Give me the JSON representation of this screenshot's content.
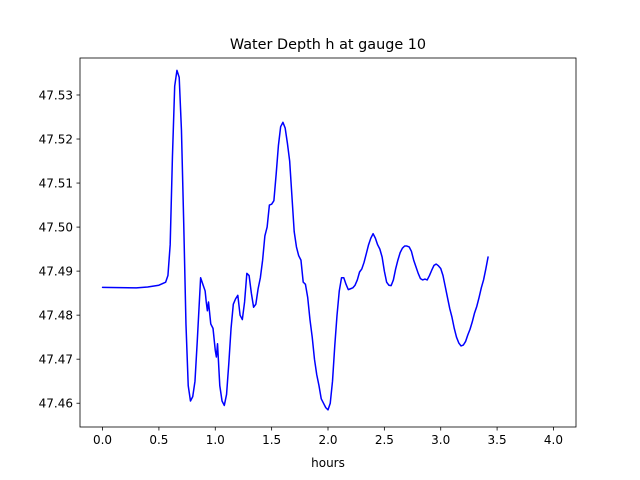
{
  "chart_data": {
    "type": "line",
    "title": "Water Depth h at gauge 10",
    "xlabel": "hours",
    "ylabel": "",
    "xlim": [
      -0.2,
      4.2
    ],
    "ylim": [
      47.4546,
      47.5384
    ],
    "grid": false,
    "xticks": [
      0.0,
      0.5,
      1.0,
      1.5,
      2.0,
      2.5,
      3.0,
      3.5,
      4.0
    ],
    "xtick_labels": [
      "0.0",
      "0.5",
      "1.0",
      "1.5",
      "2.0",
      "2.5",
      "3.0",
      "3.5",
      "4.0"
    ],
    "yticks": [
      47.46,
      47.47,
      47.48,
      47.49,
      47.5,
      47.51,
      47.52,
      47.53
    ],
    "ytick_labels": [
      "47.46",
      "47.47",
      "47.48",
      "47.49",
      "47.50",
      "47.51",
      "47.52",
      "47.53"
    ],
    "series": [
      {
        "color": "#0000ff",
        "points": [
          [
            0.0,
            47.4863
          ],
          [
            0.3,
            47.4862
          ],
          [
            0.4,
            47.4864
          ],
          [
            0.5,
            47.4868
          ],
          [
            0.56,
            47.4875
          ],
          [
            0.58,
            47.489
          ],
          [
            0.6,
            47.496
          ],
          [
            0.62,
            47.516
          ],
          [
            0.64,
            47.532
          ],
          [
            0.66,
            47.5356
          ],
          [
            0.68,
            47.534
          ],
          [
            0.7,
            47.522
          ],
          [
            0.72,
            47.501
          ],
          [
            0.74,
            47.478
          ],
          [
            0.76,
            47.464
          ],
          [
            0.78,
            47.4605
          ],
          [
            0.8,
            47.4615
          ],
          [
            0.82,
            47.465
          ],
          [
            0.84,
            47.474
          ],
          [
            0.87,
            47.4885
          ],
          [
            0.89,
            47.487
          ],
          [
            0.91,
            47.4855
          ],
          [
            0.92,
            47.483
          ],
          [
            0.93,
            47.481
          ],
          [
            0.94,
            47.483
          ],
          [
            0.96,
            47.478
          ],
          [
            0.98,
            47.477
          ],
          [
            1.0,
            47.472
          ],
          [
            1.01,
            47.4705
          ],
          [
            1.02,
            47.4735
          ],
          [
            1.04,
            47.464
          ],
          [
            1.06,
            47.4605
          ],
          [
            1.08,
            47.4595
          ],
          [
            1.1,
            47.462
          ],
          [
            1.12,
            47.469
          ],
          [
            1.14,
            47.477
          ],
          [
            1.16,
            47.4825
          ],
          [
            1.18,
            47.4837
          ],
          [
            1.2,
            47.4845
          ],
          [
            1.22,
            47.48
          ],
          [
            1.24,
            47.479
          ],
          [
            1.26,
            47.483
          ],
          [
            1.28,
            47.4895
          ],
          [
            1.3,
            47.489
          ],
          [
            1.32,
            47.485
          ],
          [
            1.34,
            47.4818
          ],
          [
            1.36,
            47.4825
          ],
          [
            1.38,
            47.486
          ],
          [
            1.4,
            47.4885
          ],
          [
            1.42,
            47.4925
          ],
          [
            1.44,
            47.498
          ],
          [
            1.46,
            47.5
          ],
          [
            1.48,
            47.505
          ],
          [
            1.5,
            47.5052
          ],
          [
            1.52,
            47.506
          ],
          [
            1.54,
            47.512
          ],
          [
            1.56,
            47.5185
          ],
          [
            1.58,
            47.5228
          ],
          [
            1.6,
            47.5238
          ],
          [
            1.62,
            47.5225
          ],
          [
            1.64,
            47.519
          ],
          [
            1.66,
            47.515
          ],
          [
            1.68,
            47.507
          ],
          [
            1.7,
            47.499
          ],
          [
            1.72,
            47.4955
          ],
          [
            1.74,
            47.4935
          ],
          [
            1.76,
            47.4925
          ],
          [
            1.78,
            47.4875
          ],
          [
            1.8,
            47.487
          ],
          [
            1.82,
            47.484
          ],
          [
            1.84,
            47.479
          ],
          [
            1.86,
            47.475
          ],
          [
            1.88,
            47.47
          ],
          [
            1.9,
            47.4665
          ],
          [
            1.92,
            47.464
          ],
          [
            1.94,
            47.461
          ],
          [
            1.96,
            47.46
          ],
          [
            1.98,
            47.459
          ],
          [
            2.0,
            47.4585
          ],
          [
            2.02,
            47.46
          ],
          [
            2.04,
            47.465
          ],
          [
            2.06,
            47.473
          ],
          [
            2.08,
            47.48
          ],
          [
            2.1,
            47.4855
          ],
          [
            2.12,
            47.4885
          ],
          [
            2.14,
            47.4885
          ],
          [
            2.16,
            47.487
          ],
          [
            2.18,
            47.4858
          ],
          [
            2.2,
            47.486
          ],
          [
            2.22,
            47.4862
          ],
          [
            2.24,
            47.4868
          ],
          [
            2.26,
            47.488
          ],
          [
            2.28,
            47.4898
          ],
          [
            2.3,
            47.4905
          ],
          [
            2.32,
            47.492
          ],
          [
            2.34,
            47.494
          ],
          [
            2.36,
            47.496
          ],
          [
            2.38,
            47.4975
          ],
          [
            2.4,
            47.4985
          ],
          [
            2.42,
            47.4975
          ],
          [
            2.44,
            47.496
          ],
          [
            2.46,
            47.495
          ],
          [
            2.48,
            47.4932
          ],
          [
            2.5,
            47.49
          ],
          [
            2.52,
            47.4875
          ],
          [
            2.54,
            47.4868
          ],
          [
            2.56,
            47.4867
          ],
          [
            2.58,
            47.488
          ],
          [
            2.6,
            47.4905
          ],
          [
            2.62,
            47.4925
          ],
          [
            2.64,
            47.4942
          ],
          [
            2.66,
            47.4952
          ],
          [
            2.68,
            47.4957
          ],
          [
            2.7,
            47.4957
          ],
          [
            2.72,
            47.4955
          ],
          [
            2.74,
            47.4945
          ],
          [
            2.76,
            47.4925
          ],
          [
            2.78,
            47.491
          ],
          [
            2.8,
            47.4895
          ],
          [
            2.82,
            47.4883
          ],
          [
            2.84,
            47.488
          ],
          [
            2.86,
            47.4882
          ],
          [
            2.88,
            47.488
          ],
          [
            2.9,
            47.489
          ],
          [
            2.92,
            47.4902
          ],
          [
            2.94,
            47.4913
          ],
          [
            2.96,
            47.4916
          ],
          [
            2.98,
            47.4912
          ],
          [
            3.0,
            47.4906
          ],
          [
            3.02,
            47.489
          ],
          [
            3.04,
            47.4865
          ],
          [
            3.06,
            47.484
          ],
          [
            3.08,
            47.4815
          ],
          [
            3.1,
            47.4795
          ],
          [
            3.12,
            47.477
          ],
          [
            3.14,
            47.475
          ],
          [
            3.16,
            47.4737
          ],
          [
            3.18,
            47.473
          ],
          [
            3.2,
            47.4732
          ],
          [
            3.22,
            47.474
          ],
          [
            3.24,
            47.4755
          ],
          [
            3.26,
            47.4768
          ],
          [
            3.28,
            47.4785
          ],
          [
            3.3,
            47.4805
          ],
          [
            3.32,
            47.482
          ],
          [
            3.34,
            47.484
          ],
          [
            3.36,
            47.4862
          ],
          [
            3.38,
            47.488
          ],
          [
            3.4,
            47.4905
          ],
          [
            3.42,
            47.4932
          ]
        ]
      }
    ]
  }
}
